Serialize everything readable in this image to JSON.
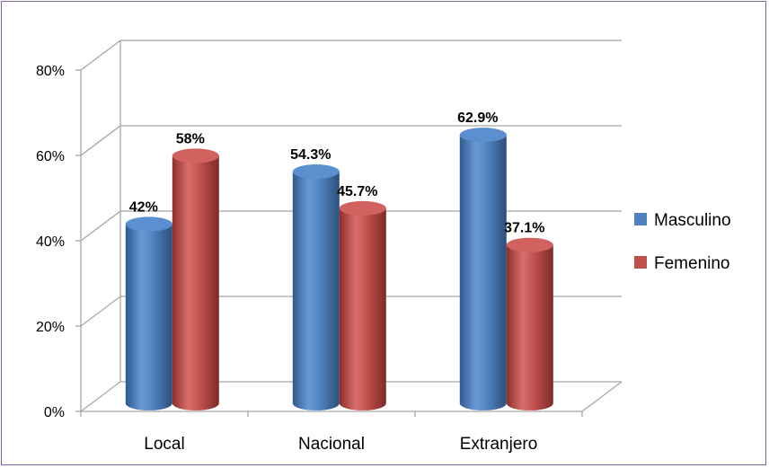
{
  "chart_data": {
    "type": "bar",
    "three_d": true,
    "title": "",
    "xlabel": "",
    "ylabel": "",
    "categories": [
      "Local",
      "Nacional",
      "Extranjero"
    ],
    "series": [
      {
        "name": "Masculino",
        "values": [
          42,
          54.3,
          62.9
        ],
        "labels": [
          "42%",
          "54.3%",
          "62.9%"
        ],
        "color": "#4f81bd"
      },
      {
        "name": "Femenino",
        "values": [
          58,
          45.7,
          37.1
        ],
        "labels": [
          "58%",
          "45.7%",
          "37.1%"
        ],
        "color": "#c0504d"
      }
    ],
    "ylim": [
      0,
      80
    ],
    "yticks": [
      "0%",
      "20%",
      "40%",
      "60%",
      "80%"
    ],
    "grid": true,
    "legend_position": "right"
  },
  "colors": {
    "frame_border": "#8064a2",
    "grid": "#a6a6a6"
  }
}
